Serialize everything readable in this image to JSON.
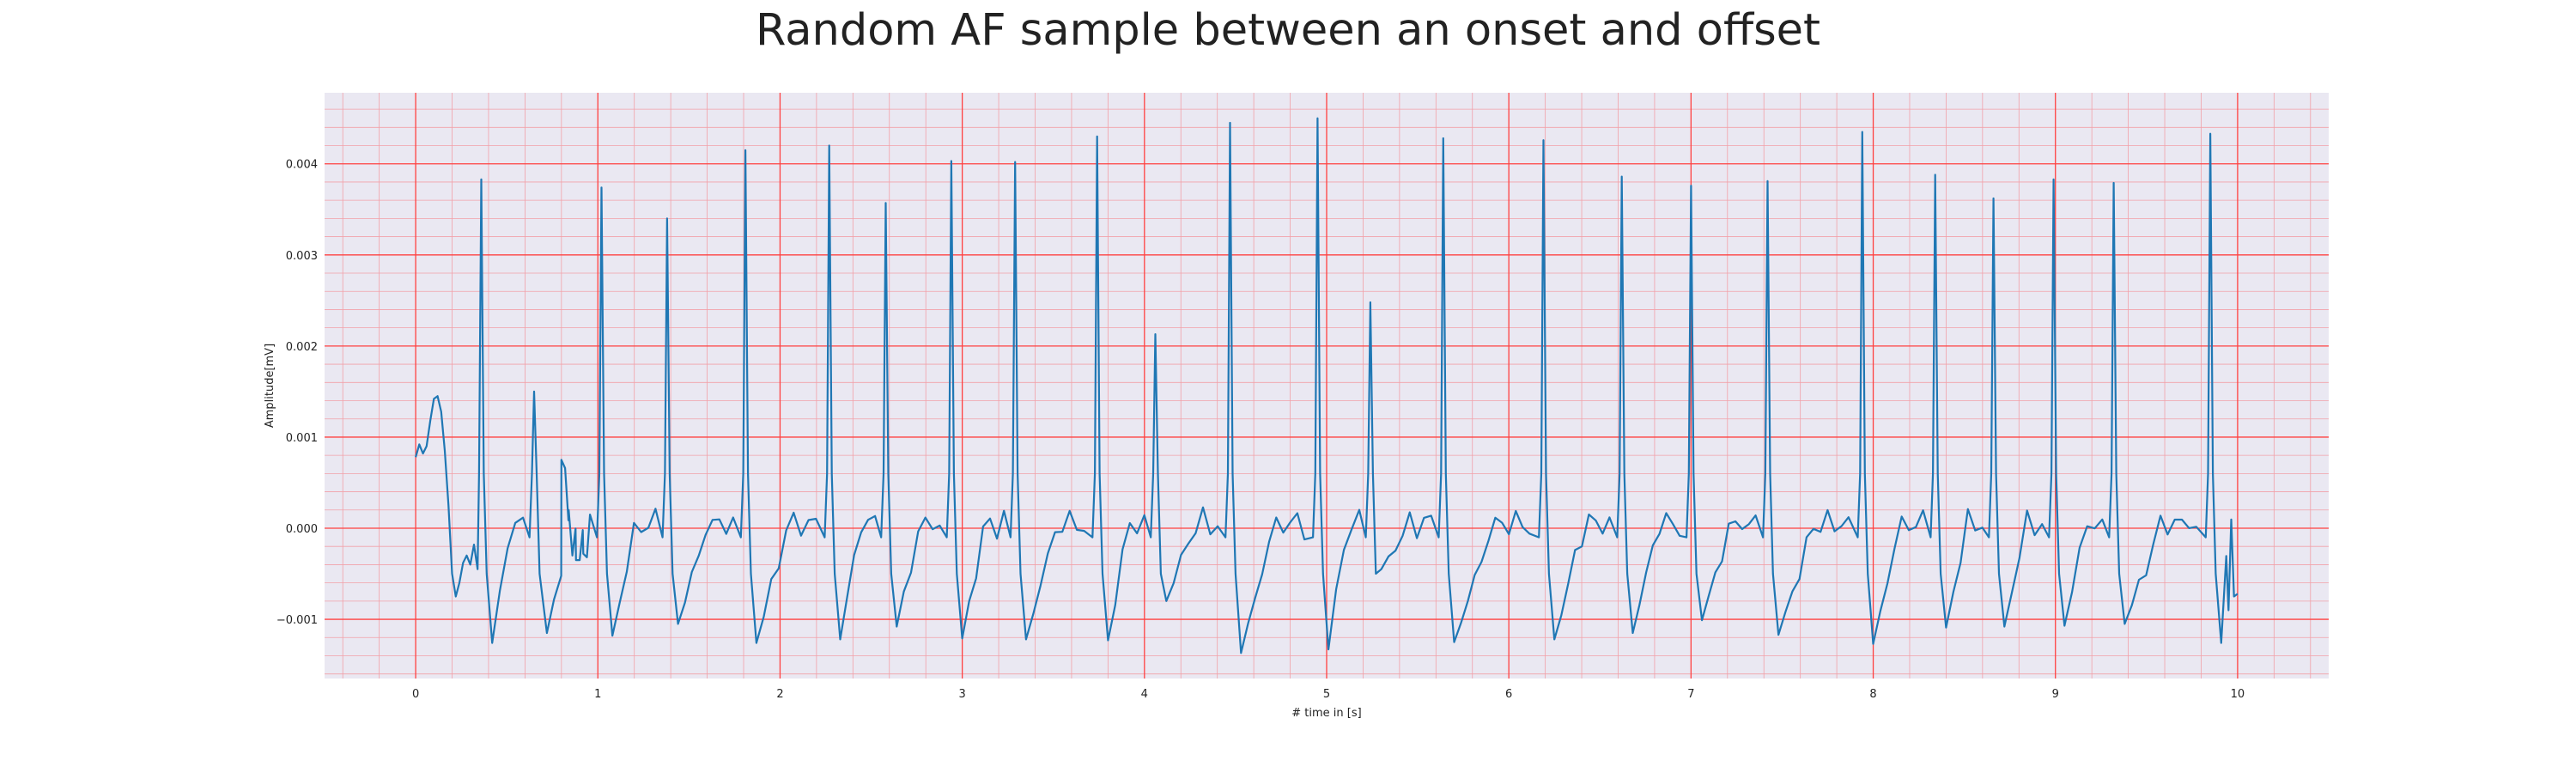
{
  "chart_data": {
    "type": "line",
    "title": "Random AF sample between an onset and offset",
    "xlabel": "# time in [s]",
    "ylabel": "Amplitude[mV]",
    "xlim": [
      -0.5,
      10.5
    ],
    "ylim": [
      -0.00165,
      0.00478
    ],
    "x_ticks": [
      0,
      1,
      2,
      3,
      4,
      5,
      6,
      7,
      8,
      9,
      10
    ],
    "y_ticks": [
      -0.001,
      0.0,
      0.001,
      0.002,
      0.003,
      0.004
    ],
    "y_tick_labels": [
      "−0.001",
      "0.000",
      "0.001",
      "0.002",
      "0.003",
      "0.004"
    ],
    "grid": "major and minor",
    "colors": {
      "line": "#1f77b4",
      "grid_major": "#ff4040",
      "grid_minor": "#f2a0a8",
      "background": "#eae8f2"
    },
    "series": [
      {
        "name": "",
        "beats": [
          [
            0.36,
            0.00383
          ],
          [
            0.65,
            0.0015
          ],
          [
            1.02,
            0.00374
          ],
          [
            1.38,
            0.0034
          ],
          [
            1.81,
            0.00415
          ],
          [
            2.27,
            0.0042
          ],
          [
            2.58,
            0.00357
          ],
          [
            2.94,
            0.00403
          ],
          [
            3.29,
            0.00402
          ],
          [
            3.74,
            0.0043
          ],
          [
            4.06,
            0.00213
          ],
          [
            4.47,
            0.00445
          ],
          [
            4.95,
            0.0045
          ],
          [
            5.24,
            0.00248
          ],
          [
            5.64,
            0.00428
          ],
          [
            6.19,
            0.00426
          ],
          [
            6.62,
            0.00386
          ],
          [
            7.0,
            0.00376
          ],
          [
            7.42,
            0.00381
          ],
          [
            7.94,
            0.00435
          ],
          [
            8.34,
            0.00388
          ],
          [
            8.66,
            0.00362
          ],
          [
            8.99,
            0.00383
          ],
          [
            9.32,
            0.00379
          ],
          [
            9.85,
            0.00433
          ]
        ],
        "points": [
          [
            0.0,
            0.00078
          ],
          [
            0.02,
            0.00092
          ],
          [
            0.04,
            0.00082
          ],
          [
            0.06,
            0.0009
          ],
          [
            0.08,
            0.00118
          ],
          [
            0.1,
            0.00142
          ],
          [
            0.12,
            0.00145
          ],
          [
            0.14,
            0.00128
          ],
          [
            0.16,
            0.00085
          ],
          [
            0.18,
            0.00025
          ],
          [
            0.2,
            -0.0005
          ],
          [
            0.22,
            -0.00075
          ],
          [
            0.24,
            -0.0006
          ],
          [
            0.26,
            -0.00038
          ],
          [
            0.28,
            -0.0003
          ],
          [
            0.3,
            -0.0004
          ],
          [
            0.32,
            -0.00018
          ],
          [
            0.34,
            -0.00045
          ],
          [
            0.8,
            0.00075
          ],
          [
            0.82,
            0.00066
          ],
          [
            0.84,
            0.0002
          ],
          [
            0.86,
            -0.0003
          ],
          [
            0.88,
            -0.00035
          ],
          [
            0.9,
            -0.00035
          ],
          [
            0.92,
            -0.00028
          ],
          [
            0.94,
            -0.00032
          ]
        ],
        "min_after_beat": [
          [
            0.42,
            -0.00126
          ],
          [
            0.72,
            -0.00115
          ],
          [
            1.08,
            -0.00118
          ],
          [
            1.44,
            -0.00105
          ],
          [
            1.87,
            -0.00126
          ],
          [
            2.33,
            -0.00122
          ],
          [
            2.64,
            -0.00108
          ],
          [
            3.0,
            -0.00121
          ],
          [
            3.35,
            -0.00122
          ],
          [
            3.8,
            -0.00123
          ],
          [
            4.12,
            -0.0008
          ],
          [
            4.53,
            -0.00137
          ],
          [
            5.01,
            -0.00133
          ],
          [
            5.3,
            -0.00045
          ],
          [
            5.7,
            -0.00125
          ],
          [
            6.25,
            -0.00122
          ],
          [
            6.68,
            -0.00115
          ],
          [
            7.06,
            -0.00101
          ],
          [
            7.48,
            -0.00117
          ],
          [
            8.0,
            -0.00127
          ],
          [
            8.4,
            -0.00109
          ],
          [
            8.72,
            -0.00108
          ],
          [
            9.05,
            -0.00107
          ],
          [
            9.38,
            -0.00105
          ],
          [
            9.91,
            -0.00126
          ]
        ]
      }
    ]
  }
}
